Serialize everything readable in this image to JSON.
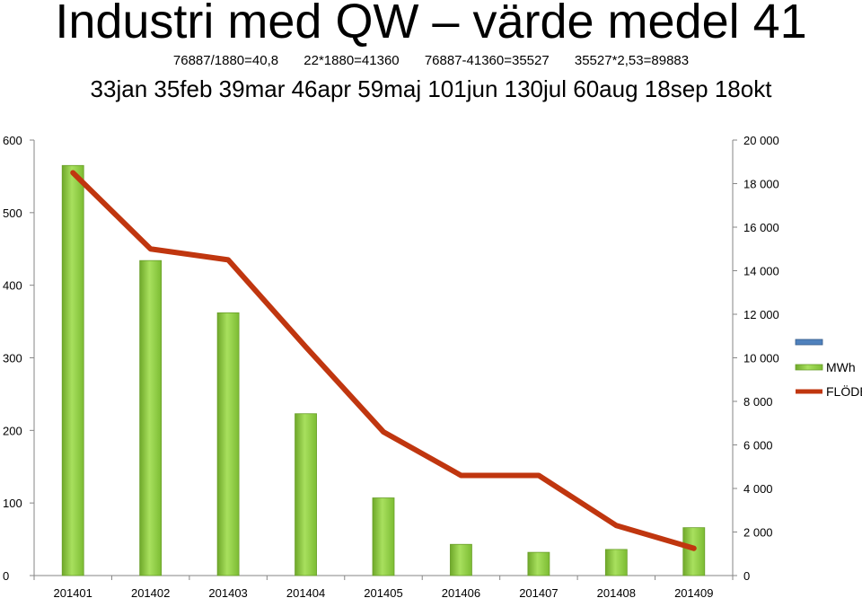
{
  "header": {
    "title": "Industri med QW – värde medel 41",
    "formulas": [
      "76887/1880=40,8",
      "22*1880=41360",
      "76887-41360=35527",
      "35527*2,53=89883"
    ],
    "months_line": "33jan 35feb 39mar 46apr 59maj 101jun 130jul 60aug 18sep 18okt"
  },
  "chart_data": {
    "type": "bar",
    "categories": [
      "201401",
      "201402",
      "201403",
      "201404",
      "201405",
      "201406",
      "201407",
      "201408",
      "201409"
    ],
    "series": [
      {
        "name": "MWh",
        "type": "bar",
        "axis": "left",
        "color": "#92d050",
        "values": [
          565,
          434,
          362,
          223,
          107,
          43,
          32,
          36,
          66
        ]
      },
      {
        "name": "FLÖDE",
        "type": "line",
        "axis": "right",
        "color": "#c0360f",
        "values": [
          18500,
          15000,
          14500,
          10500,
          6600,
          4600,
          4600,
          2300,
          1250
        ]
      }
    ],
    "legend": [
      {
        "name": "",
        "color": "#4f81bd"
      },
      {
        "name": "MWh",
        "color": "#92d050"
      },
      {
        "name": "FLÖDE",
        "color": "#c0360f"
      }
    ],
    "y_left": {
      "min": 0,
      "max": 600,
      "ticks": [
        "0",
        "100",
        "200",
        "300",
        "400",
        "500",
        "600"
      ]
    },
    "y_right": {
      "min": 0,
      "max": 20000,
      "ticks": [
        "0",
        "2 000",
        "4 000",
        "6 000",
        "8 000",
        "10 000",
        "12 000",
        "14 000",
        "16 000",
        "18 000",
        "20 000"
      ]
    },
    "grid": false,
    "legend_position": "right"
  }
}
